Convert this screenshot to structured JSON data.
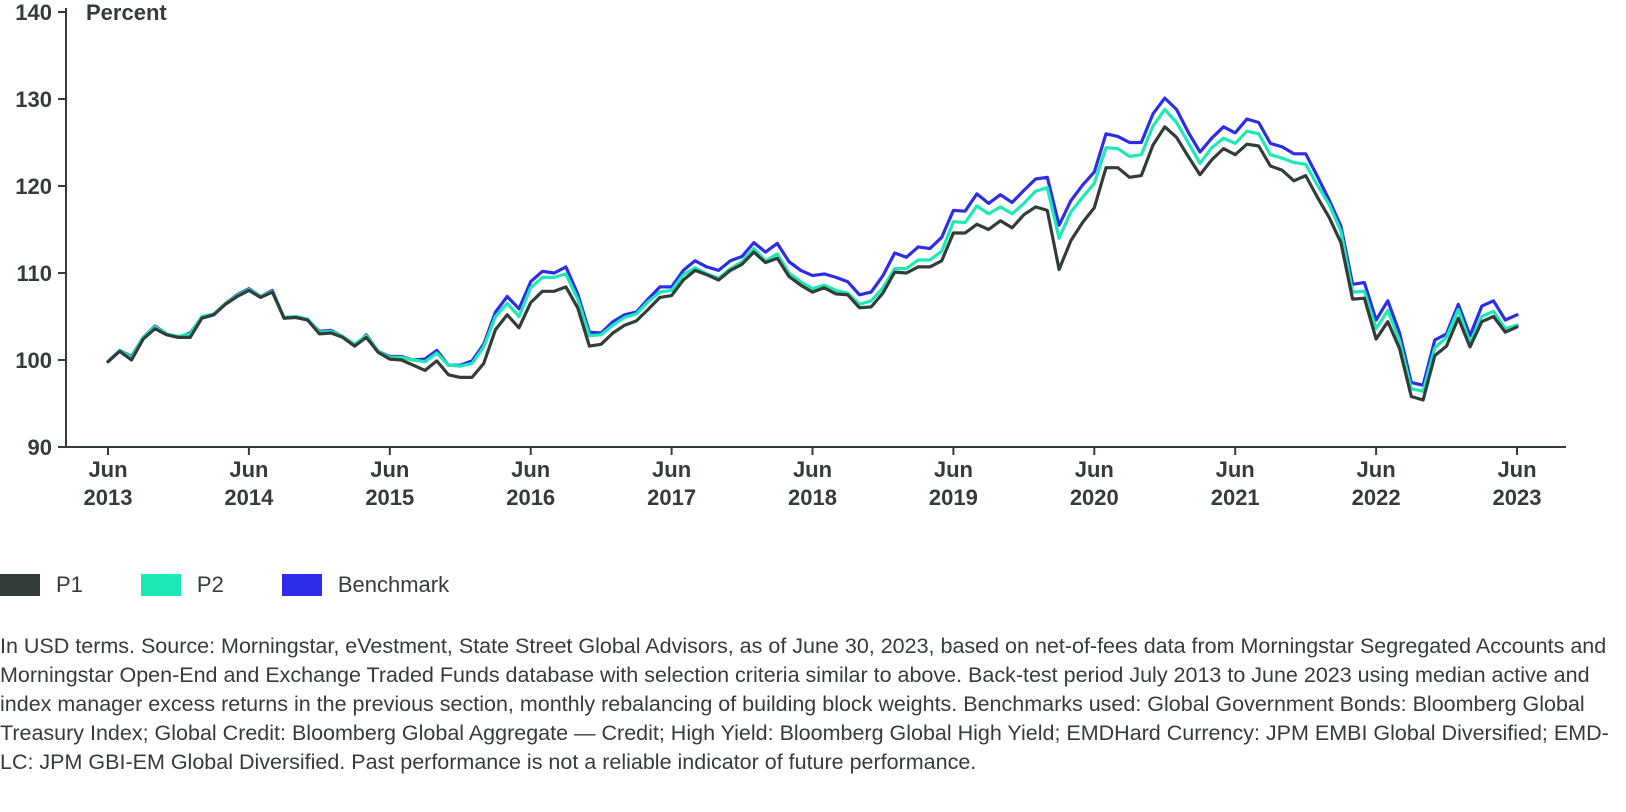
{
  "chart_data": {
    "type": "line",
    "ylabel": "Percent",
    "ylim": [
      90,
      140
    ],
    "yticks": [
      90,
      100,
      110,
      120,
      130,
      140
    ],
    "x_start": "2013-06",
    "x_end": "2023-06",
    "xticks": [
      {
        "top": "Jun",
        "bottom": "2013"
      },
      {
        "top": "Jun",
        "bottom": "2014"
      },
      {
        "top": "Jun",
        "bottom": "2015"
      },
      {
        "top": "Jun",
        "bottom": "2016"
      },
      {
        "top": "Jun",
        "bottom": "2017"
      },
      {
        "top": "Jun",
        "bottom": "2018"
      },
      {
        "top": "Jun",
        "bottom": "2019"
      },
      {
        "top": "Jun",
        "bottom": "2020"
      },
      {
        "top": "Jun",
        "bottom": "2021"
      },
      {
        "top": "Jun",
        "bottom": "2022"
      },
      {
        "top": "Jun",
        "bottom": "2023"
      }
    ],
    "series": [
      {
        "name": "P1",
        "color": "#333d38",
        "values": [
          99.8,
          101.0,
          100.0,
          102.4,
          103.6,
          102.9,
          102.6,
          102.6,
          104.8,
          105.2,
          106.4,
          107.3,
          108.0,
          107.2,
          107.8,
          104.8,
          104.9,
          104.6,
          103.0,
          103.1,
          102.6,
          101.6,
          102.6,
          100.9,
          100.1,
          100.0,
          99.4,
          98.8,
          99.9,
          98.3,
          98.0,
          98.0,
          99.6,
          103.5,
          105.2,
          103.7,
          106.6,
          107.9,
          107.9,
          108.4,
          106.0,
          101.6,
          101.8,
          103.1,
          104.0,
          104.5,
          105.8,
          107.2,
          107.4,
          109.2,
          110.3,
          109.8,
          109.2,
          110.3,
          111.0,
          112.4,
          111.2,
          111.7,
          109.6,
          108.6,
          107.8,
          108.3,
          107.6,
          107.5,
          106.0,
          106.1,
          107.7,
          110.1,
          110.0,
          110.7,
          110.7,
          111.4,
          114.6,
          114.6,
          115.6,
          115.0,
          116.0,
          115.2,
          116.7,
          117.6,
          117.2,
          110.4,
          113.7,
          115.8,
          117.5,
          122.1,
          122.1,
          121.0,
          121.2,
          124.7,
          126.8,
          125.6,
          123.4,
          121.3,
          123.0,
          124.3,
          123.6,
          124.8,
          124.6,
          122.3,
          121.8,
          120.6,
          121.2,
          118.7,
          116.4,
          113.5,
          107.0,
          107.1,
          102.4,
          104.4,
          101.3,
          95.8,
          95.4,
          100.5,
          101.6,
          104.8,
          101.5,
          104.4,
          105.0,
          103.2,
          103.8
        ]
      },
      {
        "name": "P2",
        "color": "#1de9b6",
        "values": [
          99.8,
          101.1,
          100.3,
          102.6,
          103.8,
          103.0,
          102.7,
          103.0,
          105.0,
          105.3,
          106.5,
          107.4,
          108.1,
          107.3,
          107.9,
          104.9,
          105.0,
          104.7,
          103.2,
          103.3,
          102.7,
          101.8,
          102.8,
          101.0,
          100.3,
          100.3,
          100.0,
          99.8,
          100.8,
          99.4,
          99.3,
          99.6,
          101.5,
          105.0,
          106.5,
          105.0,
          108.3,
          109.5,
          109.5,
          109.9,
          107.0,
          102.8,
          102.9,
          104.0,
          104.9,
          105.3,
          106.7,
          107.8,
          108.0,
          109.8,
          110.6,
          109.9,
          109.4,
          110.5,
          111.3,
          112.8,
          111.4,
          112.2,
          110.0,
          109.0,
          108.2,
          108.6,
          108.0,
          107.7,
          106.4,
          106.8,
          108.3,
          110.5,
          110.5,
          111.5,
          111.5,
          112.5,
          115.9,
          115.8,
          117.7,
          116.8,
          117.6,
          116.8,
          118.0,
          119.4,
          119.8,
          114.0,
          117.0,
          118.7,
          120.3,
          124.4,
          124.3,
          123.4,
          123.6,
          126.9,
          128.8,
          127.3,
          125.0,
          122.6,
          124.4,
          125.5,
          124.9,
          126.3,
          126.0,
          123.6,
          123.2,
          122.7,
          122.5,
          120.1,
          117.9,
          114.8,
          107.8,
          107.9,
          103.6,
          105.7,
          102.2,
          96.7,
          96.4,
          101.4,
          102.6,
          105.8,
          102.0,
          105.0,
          105.6,
          103.6,
          104.0
        ]
      },
      {
        "name": "Benchmark",
        "color": "#2d2de8",
        "values": [
          99.8,
          101.1,
          100.4,
          102.6,
          103.9,
          103.0,
          102.6,
          103.1,
          104.9,
          105.2,
          106.5,
          107.5,
          108.2,
          107.3,
          108.0,
          104.8,
          104.9,
          104.6,
          103.3,
          103.4,
          102.7,
          101.6,
          102.9,
          101.0,
          100.4,
          100.4,
          100.0,
          100.1,
          101.1,
          99.4,
          99.4,
          99.9,
          101.8,
          105.5,
          107.3,
          105.9,
          109.0,
          110.2,
          110.0,
          110.7,
          107.6,
          103.2,
          103.1,
          104.4,
          105.2,
          105.5,
          107.0,
          108.4,
          108.4,
          110.3,
          111.4,
          110.7,
          110.3,
          111.4,
          111.9,
          113.5,
          112.4,
          113.4,
          111.3,
          110.3,
          109.7,
          109.9,
          109.5,
          109.0,
          107.5,
          107.8,
          109.7,
          112.3,
          111.8,
          113.0,
          112.8,
          114.1,
          117.2,
          117.1,
          119.1,
          118.0,
          119.0,
          118.1,
          119.5,
          120.8,
          121.0,
          115.5,
          118.3,
          120.1,
          121.6,
          126.0,
          125.7,
          125.0,
          125.0,
          128.3,
          130.1,
          128.8,
          126.2,
          123.9,
          125.5,
          126.8,
          126.1,
          127.7,
          127.3,
          124.9,
          124.5,
          123.7,
          123.7,
          121.1,
          118.4,
          115.4,
          108.7,
          108.9,
          104.6,
          106.8,
          103.1,
          97.4,
          97.1,
          102.3,
          103.0,
          106.4,
          102.8,
          106.2,
          106.8,
          104.6,
          105.2
        ]
      }
    ]
  },
  "legend": {
    "items": [
      {
        "label": "P1",
        "color": "#333d38"
      },
      {
        "label": "P2",
        "color": "#1de9b6"
      },
      {
        "label": "Benchmark",
        "color": "#2d2de8"
      }
    ]
  },
  "footnote": "In USD terms. Source: Morningstar, eVestment, State Street Global Advisors, as of June 30, 2023, based on net-of-fees data from Morningstar Segregated Accounts and Morningstar Open-End and Exchange Traded Funds database with selection criteria similar to above. Back-test period July 2013 to June 2023 using median active and index manager excess returns in the previous section, monthly rebalancing of building block weights. Benchmarks used: Global Government Bonds: Bloomberg Global Treasury Index; Global Credit: Bloomberg Global Aggregate — Credit; High Yield: Bloomberg Global High Yield; EMDHard Currency: JPM EMBI Global Diversified; EMD-LC: JPM GBI-EM Global Diversified. Past performance is not a reliable indicator of future performance."
}
